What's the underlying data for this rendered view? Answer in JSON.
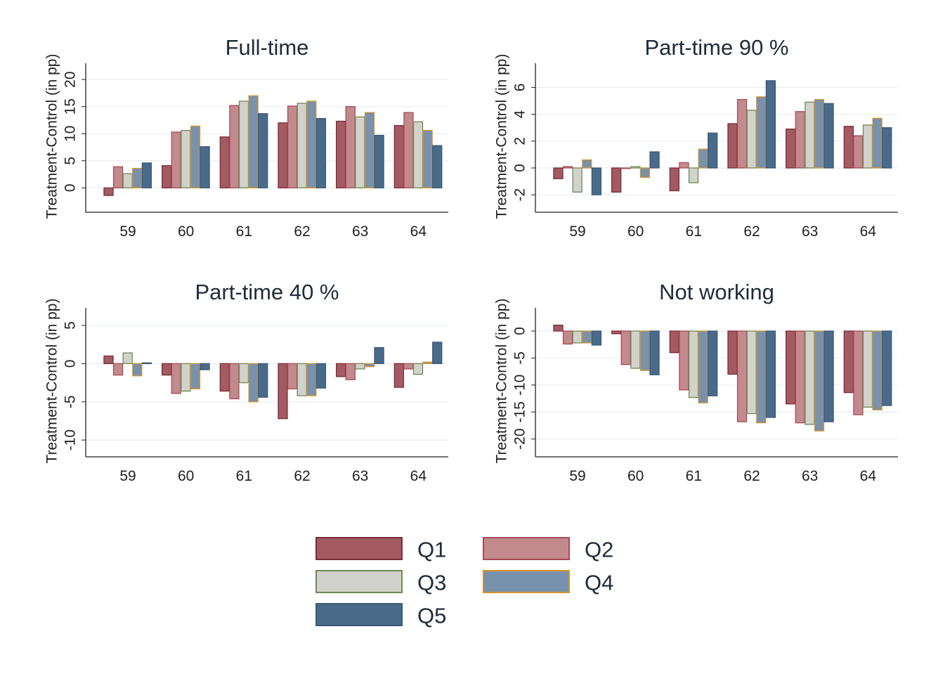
{
  "figure": {
    "ylabel": "Treatment-Control (in pp)",
    "legend_placement": "bottom-center"
  },
  "series_style": [
    {
      "name": "Q1",
      "fill": "#a35a62",
      "stroke": "#7a2e3a"
    },
    {
      "name": "Q2",
      "fill": "#c38a8e",
      "stroke": "#a84a55"
    },
    {
      "name": "Q3",
      "fill": "#d2d2cc",
      "stroke": "#6e8a55"
    },
    {
      "name": "Q4",
      "fill": "#7891ac",
      "stroke": "#d4922f"
    },
    {
      "name": "Q5",
      "fill": "#4a6a8a",
      "stroke": "#3a5a78"
    }
  ],
  "chart_data": [
    {
      "type": "bar",
      "title": "Full-time",
      "ylabel": "Treatment-Control (in pp)",
      "xlabel": "",
      "categories": [
        "59",
        "60",
        "61",
        "62",
        "63",
        "64"
      ],
      "yticks": [
        0,
        5,
        10,
        15,
        20
      ],
      "ylim": [
        -4.5,
        23
      ],
      "grid": true,
      "series": [
        {
          "name": "Q1",
          "values": [
            -1.4,
            4.1,
            9.4,
            12.0,
            12.3,
            11.5
          ]
        },
        {
          "name": "Q2",
          "values": [
            3.9,
            10.3,
            15.2,
            15.1,
            15.0,
            13.9
          ]
        },
        {
          "name": "Q3",
          "values": [
            2.6,
            10.6,
            16.0,
            15.6,
            13.1,
            12.2
          ]
        },
        {
          "name": "Q4",
          "values": [
            3.6,
            11.4,
            17.0,
            16.0,
            13.9,
            10.6
          ]
        },
        {
          "name": "Q5",
          "values": [
            4.6,
            7.6,
            13.7,
            12.8,
            9.7,
            7.8
          ]
        }
      ]
    },
    {
      "type": "bar",
      "title": "Part-time 90 %",
      "ylabel": "Treatment-Control (in pp)",
      "xlabel": "",
      "categories": [
        "59",
        "60",
        "61",
        "62",
        "63",
        "64"
      ],
      "yticks": [
        -2,
        0,
        2,
        4,
        6
      ],
      "ylim": [
        -3.3,
        7.8
      ],
      "grid": true,
      "series": [
        {
          "name": "Q1",
          "values": [
            -0.8,
            -1.8,
            -1.7,
            3.3,
            2.9,
            3.1
          ]
        },
        {
          "name": "Q2",
          "values": [
            0.1,
            0.0,
            0.4,
            5.1,
            4.2,
            2.4
          ]
        },
        {
          "name": "Q3",
          "values": [
            -1.8,
            0.1,
            -1.1,
            4.3,
            4.9,
            3.2
          ]
        },
        {
          "name": "Q4",
          "values": [
            0.6,
            -0.7,
            1.4,
            5.3,
            5.1,
            3.7
          ]
        },
        {
          "name": "Q5",
          "values": [
            -2.0,
            1.2,
            2.6,
            6.5,
            4.8,
            3.0
          ]
        }
      ]
    },
    {
      "type": "bar",
      "title": "Part-time 40 %",
      "ylabel": "Treatment-Control (in pp)",
      "xlabel": "",
      "categories": [
        "59",
        "60",
        "61",
        "62",
        "63",
        "64"
      ],
      "yticks": [
        -10,
        -5,
        0,
        5
      ],
      "ylim": [
        -12.2,
        7.3
      ],
      "grid": true,
      "series": [
        {
          "name": "Q1",
          "values": [
            1.0,
            -1.5,
            -3.6,
            -7.2,
            -1.7,
            -3.1
          ]
        },
        {
          "name": "Q2",
          "values": [
            -1.5,
            -3.9,
            -4.6,
            -3.3,
            -2.1,
            -0.7
          ]
        },
        {
          "name": "Q3",
          "values": [
            1.4,
            -3.6,
            -2.5,
            -4.2,
            -0.7,
            -1.4
          ]
        },
        {
          "name": "Q4",
          "values": [
            -1.6,
            -3.3,
            -5.0,
            -4.2,
            -0.4,
            0.2
          ]
        },
        {
          "name": "Q5",
          "values": [
            0.1,
            -0.8,
            -4.4,
            -3.2,
            2.1,
            2.8
          ]
        }
      ]
    },
    {
      "type": "bar",
      "title": "Not working",
      "ylabel": "Treatment-Control (in pp)",
      "xlabel": "",
      "categories": [
        "59",
        "60",
        "61",
        "62",
        "63",
        "64"
      ],
      "yticks": [
        -20,
        -15,
        -10,
        -5,
        0
      ],
      "ylim": [
        -23.3,
        4.3
      ],
      "grid": true,
      "series": [
        {
          "name": "Q1",
          "values": [
            1.1,
            -0.5,
            -4.0,
            -8.0,
            -13.5,
            -11.4
          ]
        },
        {
          "name": "Q2",
          "values": [
            -2.4,
            -6.2,
            -10.9,
            -16.8,
            -17.0,
            -15.5
          ]
        },
        {
          "name": "Q3",
          "values": [
            -2.2,
            -6.9,
            -12.3,
            -15.3,
            -17.3,
            -14.1
          ]
        },
        {
          "name": "Q4",
          "values": [
            -2.2,
            -7.3,
            -13.3,
            -17.0,
            -18.5,
            -14.6
          ]
        },
        {
          "name": "Q5",
          "values": [
            -2.6,
            -8.1,
            -12.0,
            -16.0,
            -16.8,
            -13.8
          ]
        }
      ]
    }
  ],
  "legend": {
    "items": [
      "Q1",
      "Q2",
      "Q3",
      "Q4",
      "Q5"
    ]
  }
}
